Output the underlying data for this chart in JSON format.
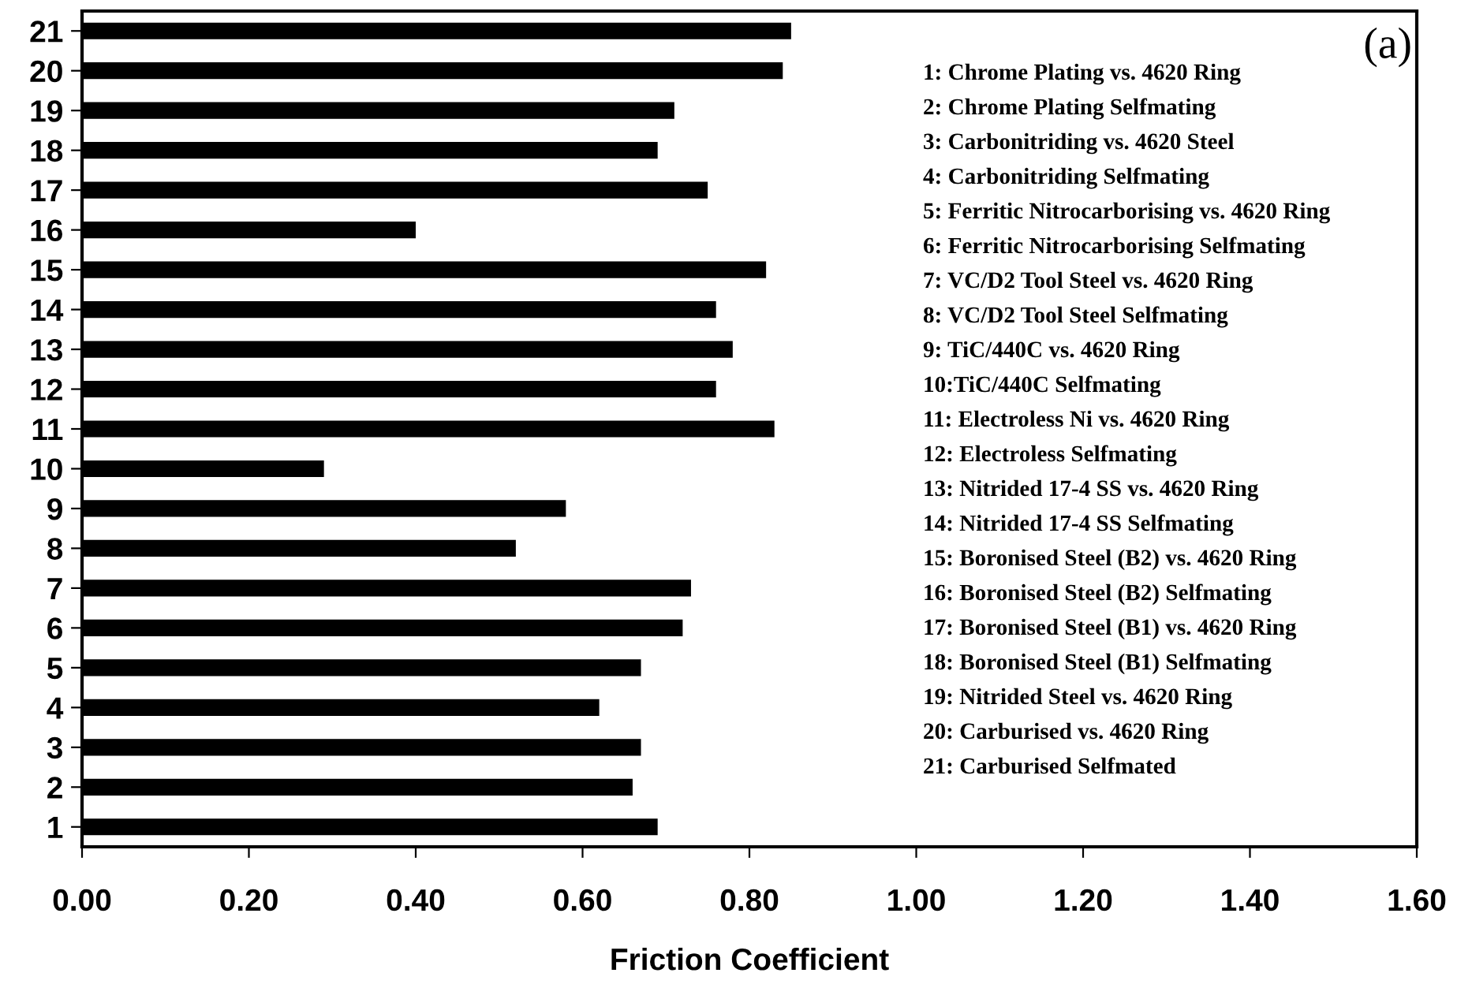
{
  "chart_data": {
    "type": "bar",
    "orientation": "horizontal",
    "xlabel": "Friction Coefficient",
    "categories": [
      "21",
      "20",
      "19",
      "18",
      "17",
      "16",
      "15",
      "14",
      "13",
      "12",
      "11",
      "10",
      "9",
      "8",
      "7",
      "6",
      "5",
      "4",
      "3",
      "2",
      "1"
    ],
    "values": [
      0.85,
      0.84,
      0.71,
      0.69,
      0.75,
      0.4,
      0.82,
      0.76,
      0.78,
      0.76,
      0.83,
      0.29,
      0.58,
      0.52,
      0.73,
      0.72,
      0.67,
      0.62,
      0.67,
      0.66,
      0.69
    ],
    "color": "#000000",
    "xlim": [
      0,
      1.6
    ],
    "xticks": [
      {
        "value": 0,
        "label": "0.00"
      },
      {
        "value": 0.2,
        "label": "0.20"
      },
      {
        "value": 0.4,
        "label": "0.40"
      },
      {
        "value": 0.6,
        "label": "0.60"
      },
      {
        "value": 0.8,
        "label": "0.80"
      },
      {
        "value": 1.0,
        "label": "1.00"
      },
      {
        "value": 1.2,
        "label": "1.20"
      },
      {
        "value": 1.4,
        "label": "1.40"
      },
      {
        "value": 1.6,
        "label": "1.60"
      }
    ],
    "grid": false,
    "legend": false,
    "annotations": [
      "(a)",
      "1: Chrome Plating vs. 4620 Ring",
      "2: Chrome Plating Selfmating",
      "3: Carbonitriding vs. 4620 Steel",
      "4: Carbonitriding Selfmating",
      "5: Ferritic Nitrocarborising vs. 4620 Ring",
      "6: Ferritic Nitrocarborising Selfmating",
      "7: VC/D2 Tool Steel vs. 4620 Ring",
      "8: VC/D2 Tool Steel Selfmating",
      "9: TiC/440C vs. 4620 Ring",
      "10:TiC/440C Selfmating",
      "11: Electroless Ni vs. 4620 Ring",
      "12: Electroless Selfmating",
      "13: Nitrided 17-4 SS vs. 4620 Ring",
      "14: Nitrided 17-4 SS Selfmating",
      "15: Boronised Steel (B2) vs. 4620 Ring",
      "16: Boronised Steel (B2) Selfmating",
      "17: Boronised Steel (B1) vs. 4620 Ring",
      "18: Boronised Steel (B1) Selfmating",
      "19: Nitrided Steel vs. 4620 Ring",
      "20: Carburised vs. 4620 Ring",
      "21: Carburised Selfmated"
    ]
  }
}
